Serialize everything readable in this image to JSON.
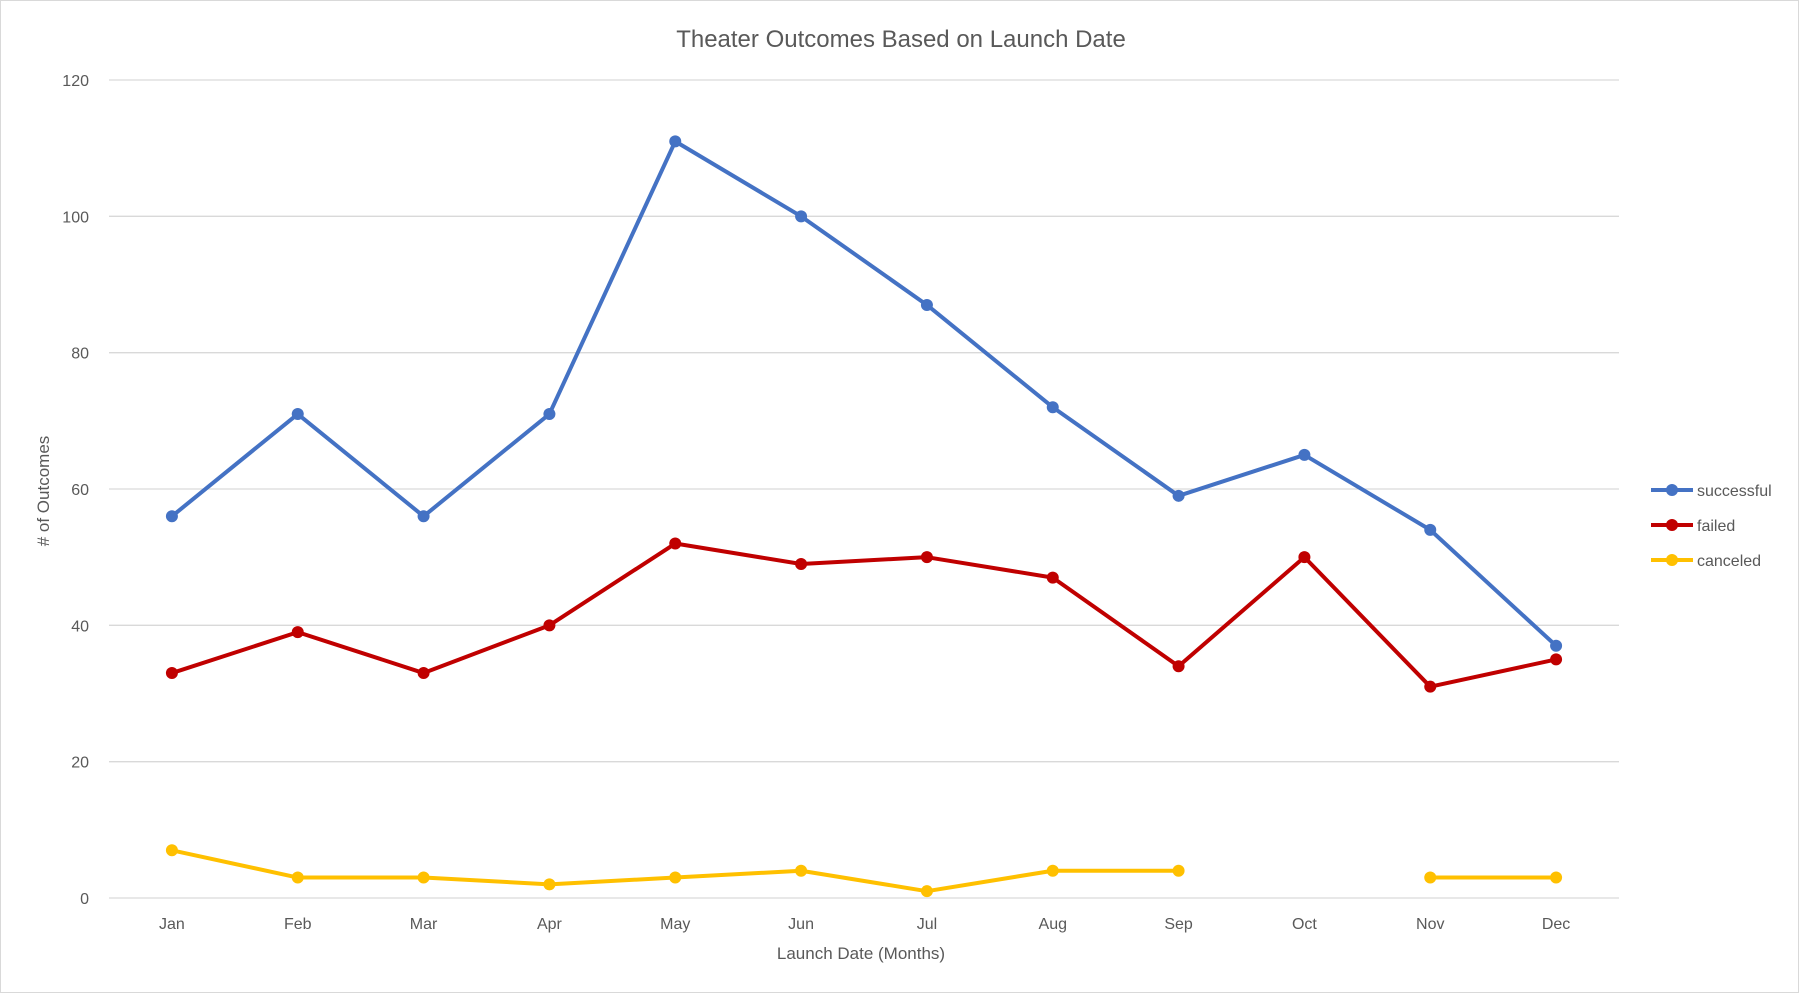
{
  "chart_data": {
    "type": "line",
    "title": "Theater Outcomes Based on Launch Date",
    "xlabel": "Launch Date (Months)",
    "ylabel": "# of Outcomes",
    "categories": [
      "Jan",
      "Feb",
      "Mar",
      "Apr",
      "May",
      "Jun",
      "Jul",
      "Aug",
      "Sep",
      "Oct",
      "Nov",
      "Dec"
    ],
    "ylim": [
      0,
      120
    ],
    "yticks": [
      0,
      20,
      40,
      60,
      80,
      100,
      120
    ],
    "grid": true,
    "legend_position": "right",
    "series": [
      {
        "name": "successful",
        "color": "#4472C4",
        "values": [
          56,
          71,
          56,
          71,
          111,
          100,
          87,
          72,
          59,
          65,
          54,
          37
        ]
      },
      {
        "name": "failed",
        "color": "#C00000",
        "values": [
          33,
          39,
          33,
          40,
          52,
          49,
          50,
          47,
          34,
          50,
          31,
          35
        ]
      },
      {
        "name": "canceled",
        "color": "#FFC000",
        "values": [
          7,
          3,
          3,
          2,
          3,
          4,
          1,
          4,
          4,
          null,
          3,
          3
        ]
      }
    ]
  }
}
